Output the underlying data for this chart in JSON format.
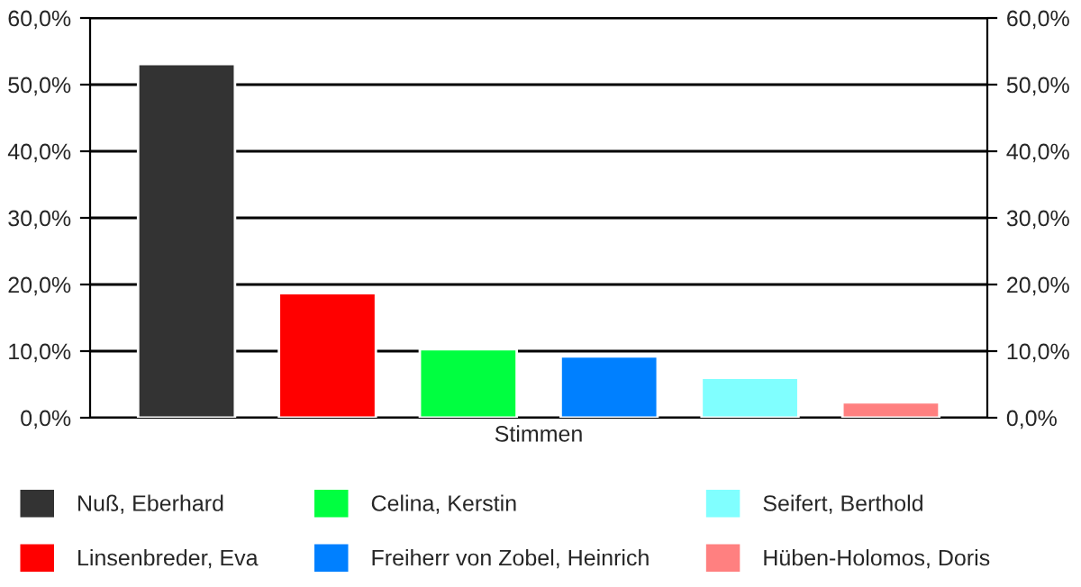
{
  "chart_data": {
    "type": "bar",
    "categories": [
      "Stimmen"
    ],
    "series": [
      {
        "name": "Nuß, Eberhard",
        "color": "#333333",
        "values": [
          53.1
        ]
      },
      {
        "name": "Linsenbreder, Eva",
        "color": "#ff0000",
        "values": [
          18.7
        ]
      },
      {
        "name": "Celina, Kerstin",
        "color": "#00ff40",
        "values": [
          10.3
        ]
      },
      {
        "name": "Freiherr von Zobel, Heinrich",
        "color": "#0080ff",
        "values": [
          9.2
        ]
      },
      {
        "name": "Seifert, Berthold",
        "color": "#80ffff",
        "values": [
          6.0
        ]
      },
      {
        "name": "Hüben-Holomos, Doris",
        "color": "#ff8080",
        "values": [
          2.3
        ]
      }
    ],
    "ylim": [
      0,
      60
    ],
    "yticks": [
      {
        "value": 0,
        "label": "0,0%"
      },
      {
        "value": 10,
        "label": "10,0%"
      },
      {
        "value": 20,
        "label": "20,0%"
      },
      {
        "value": 30,
        "label": "30,0%"
      },
      {
        "value": 40,
        "label": "40,0%"
      },
      {
        "value": 50,
        "label": "50,0%"
      },
      {
        "value": 60,
        "label": "60,0%"
      }
    ],
    "grid": "y",
    "legend": "bottom"
  }
}
